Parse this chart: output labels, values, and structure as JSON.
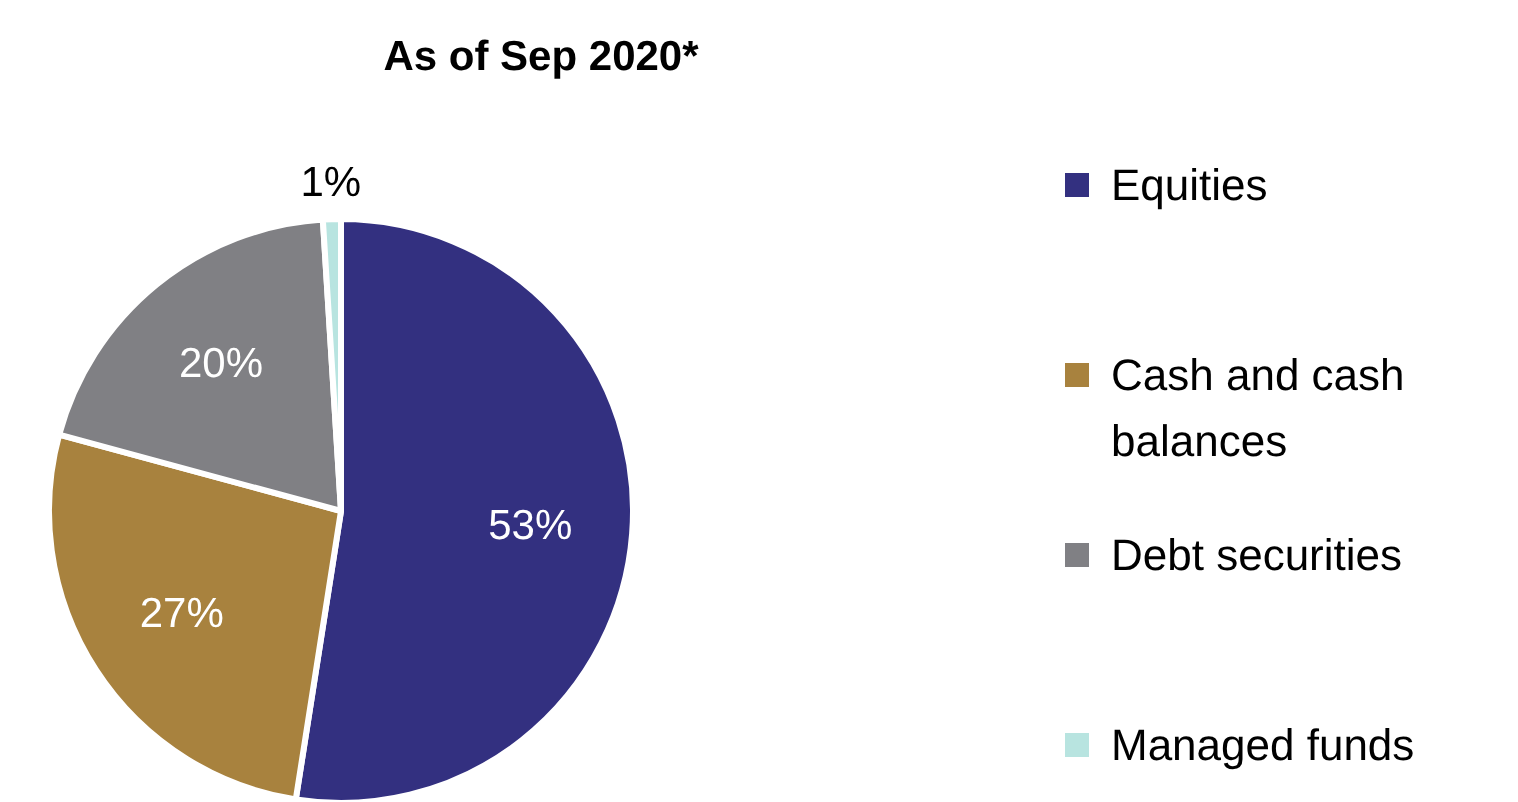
{
  "chart_data": {
    "type": "pie",
    "title": "As of Sep 2020*",
    "categories": [
      "Equities",
      "Cash and cash balances",
      "Debt securities",
      "Managed funds"
    ],
    "values": [
      53,
      27,
      20,
      1
    ],
    "colors": [
      "#333080",
      "#a8823e",
      "#808084",
      "#b8e4e0"
    ],
    "value_labels": [
      "53%",
      "27%",
      "20%",
      "1%"
    ],
    "legend": "right"
  }
}
